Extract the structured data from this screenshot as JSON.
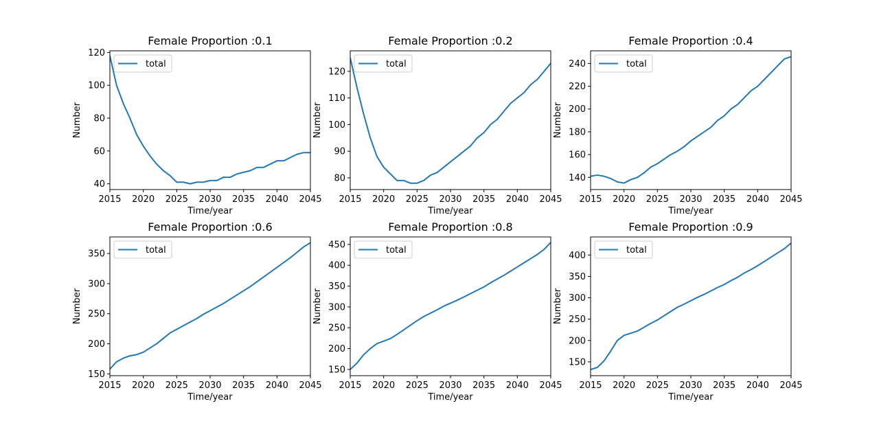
{
  "figure": {
    "background": "#ffffff",
    "line_color": "#1f77b4"
  },
  "chart_data": [
    {
      "type": "line",
      "title": "Female Proportion :0.1",
      "xlabel": "Time/year",
      "ylabel": "Number",
      "xlim": [
        2015,
        2045
      ],
      "ylim": [
        36.5,
        121
      ],
      "xticks": [
        2015,
        2020,
        2025,
        2030,
        2035,
        2040,
        2045
      ],
      "yticks": [
        40,
        60,
        80,
        100,
        120
      ],
      "legend": "upper-left",
      "series": [
        {
          "name": "total",
          "x": [
            2015,
            2016,
            2017,
            2018,
            2019,
            2020,
            2021,
            2022,
            2023,
            2024,
            2025,
            2026,
            2027,
            2028,
            2029,
            2030,
            2031,
            2032,
            2033,
            2034,
            2035,
            2036,
            2037,
            2038,
            2039,
            2040,
            2041,
            2042,
            2043,
            2044,
            2045
          ],
          "y": [
            118,
            100,
            89,
            80,
            70,
            63,
            57,
            52,
            48,
            45,
            41,
            41,
            40,
            41,
            41,
            42,
            42,
            44,
            44,
            46,
            47,
            48,
            50,
            50,
            52,
            54,
            54,
            56,
            58,
            59,
            59
          ]
        }
      ]
    },
    {
      "type": "line",
      "title": "Female Proportion :0.2",
      "xlabel": "Time/year",
      "ylabel": "Number",
      "xlim": [
        2015,
        2045
      ],
      "ylim": [
        75.6,
        127.7
      ],
      "xticks": [
        2015,
        2020,
        2025,
        2030,
        2035,
        2040,
        2045
      ],
      "yticks": [
        80,
        90,
        100,
        110,
        120
      ],
      "legend": "upper-left",
      "series": [
        {
          "name": "total",
          "x": [
            2015,
            2016,
            2017,
            2018,
            2019,
            2020,
            2021,
            2022,
            2023,
            2024,
            2025,
            2026,
            2027,
            2028,
            2029,
            2030,
            2031,
            2032,
            2033,
            2034,
            2035,
            2036,
            2037,
            2038,
            2039,
            2040,
            2041,
            2042,
            2043,
            2044,
            2045
          ],
          "y": [
            125,
            114,
            104,
            95,
            88,
            84,
            81.5,
            79,
            79,
            78,
            78,
            79,
            81,
            82,
            84,
            86,
            88,
            90,
            92,
            95,
            97,
            100,
            102,
            105,
            108,
            110,
            112,
            115,
            117,
            120,
            123
          ]
        }
      ]
    },
    {
      "type": "line",
      "title": "Female Proportion :0.4",
      "xlabel": "Time/year",
      "ylabel": "Number",
      "xlim": [
        2015,
        2045
      ],
      "ylim": [
        129.3,
        251.1
      ],
      "xticks": [
        2015,
        2020,
        2025,
        2030,
        2035,
        2040,
        2045
      ],
      "yticks": [
        140,
        160,
        180,
        200,
        220,
        240
      ],
      "legend": "upper-left",
      "series": [
        {
          "name": "total",
          "x": [
            2015,
            2016,
            2017,
            2018,
            2019,
            2020,
            2021,
            2022,
            2023,
            2024,
            2025,
            2026,
            2027,
            2028,
            2029,
            2030,
            2031,
            2032,
            2033,
            2034,
            2035,
            2036,
            2037,
            2038,
            2039,
            2040,
            2041,
            2042,
            2043,
            2044,
            2045
          ],
          "y": [
            141,
            142,
            141,
            139,
            136,
            135,
            138,
            140,
            144,
            149,
            152,
            156,
            160,
            163,
            167,
            172,
            176,
            180,
            184,
            190,
            194,
            200,
            204,
            210,
            216,
            220,
            226,
            232,
            238,
            244,
            246
          ]
        }
      ]
    },
    {
      "type": "line",
      "title": "Female Proportion :0.6",
      "xlabel": "Time/year",
      "ylabel": "Number",
      "xlim": [
        2015,
        2045
      ],
      "ylim": [
        147,
        377.5
      ],
      "xticks": [
        2015,
        2020,
        2025,
        2030,
        2035,
        2040,
        2045
      ],
      "yticks": [
        150,
        200,
        250,
        300,
        350
      ],
      "legend": "upper-left",
      "series": [
        {
          "name": "total",
          "x": [
            2015,
            2016,
            2017,
            2018,
            2019,
            2020,
            2021,
            2022,
            2023,
            2024,
            2025,
            2026,
            2027,
            2028,
            2029,
            2030,
            2031,
            2032,
            2033,
            2034,
            2035,
            2036,
            2037,
            2038,
            2039,
            2040,
            2041,
            2042,
            2043,
            2044,
            2045
          ],
          "y": [
            158,
            170,
            176,
            180,
            182,
            186,
            193,
            200,
            209,
            218,
            224,
            230,
            236,
            242,
            249,
            255,
            261,
            267,
            274,
            281,
            288,
            295,
            303,
            311,
            319,
            327,
            335,
            343,
            352,
            361,
            368
          ]
        }
      ]
    },
    {
      "type": "line",
      "title": "Female Proportion :0.8",
      "xlabel": "Time/year",
      "ylabel": "Number",
      "xlim": [
        2015,
        2045
      ],
      "ylim": [
        135,
        468
      ],
      "xticks": [
        2015,
        2020,
        2025,
        2030,
        2035,
        2040,
        2045
      ],
      "yticks": [
        150,
        200,
        250,
        300,
        350,
        400,
        450
      ],
      "legend": "upper-left",
      "series": [
        {
          "name": "total",
          "x": [
            2015,
            2016,
            2017,
            2018,
            2019,
            2020,
            2021,
            2022,
            2023,
            2024,
            2025,
            2026,
            2027,
            2028,
            2029,
            2030,
            2031,
            2032,
            2033,
            2034,
            2035,
            2036,
            2037,
            2038,
            2039,
            2040,
            2041,
            2042,
            2043,
            2044,
            2045
          ],
          "y": [
            150,
            165,
            185,
            200,
            212,
            218,
            224,
            234,
            245,
            256,
            267,
            277,
            285,
            293,
            302,
            309,
            316,
            324,
            332,
            340,
            348,
            358,
            367,
            376,
            386,
            396,
            406,
            416,
            426,
            438,
            455
          ]
        }
      ]
    },
    {
      "type": "line",
      "title": "Female Proportion :0.9",
      "xlabel": "Time/year",
      "ylabel": "Number",
      "xlim": [
        2015,
        2045
      ],
      "ylim": [
        117.7,
        442.3
      ],
      "xticks": [
        2015,
        2020,
        2025,
        2030,
        2035,
        2040,
        2045
      ],
      "yticks": [
        150,
        200,
        250,
        300,
        350,
        400
      ],
      "legend": "upper-left",
      "series": [
        {
          "name": "total",
          "x": [
            2015,
            2016,
            2017,
            2018,
            2019,
            2020,
            2021,
            2022,
            2023,
            2024,
            2025,
            2026,
            2027,
            2028,
            2029,
            2030,
            2031,
            2032,
            2033,
            2034,
            2035,
            2036,
            2037,
            2038,
            2039,
            2040,
            2041,
            2042,
            2043,
            2044,
            2045
          ],
          "y": [
            132,
            137,
            152,
            175,
            200,
            212,
            217,
            222,
            231,
            240,
            248,
            258,
            268,
            278,
            285,
            293,
            301,
            308,
            316,
            324,
            331,
            340,
            348,
            358,
            366,
            375,
            385,
            395,
            405,
            415,
            428
          ]
        }
      ]
    }
  ]
}
